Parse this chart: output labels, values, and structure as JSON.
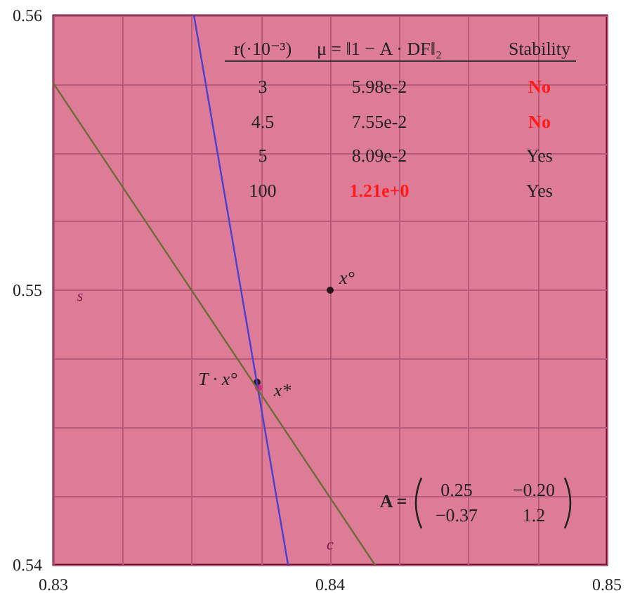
{
  "chart_data": {
    "type": "line",
    "xlim": [
      0.83,
      0.85
    ],
    "ylim": [
      0.54,
      0.56
    ],
    "xticks": [
      0.83,
      {
        "value": 0.8325,
        "label": null
      },
      {
        "value": 0.835,
        "label": null
      },
      {
        "value": 0.8375,
        "label": null
      },
      0.84,
      {
        "value": 0.8425,
        "label": null
      },
      {
        "value": 0.845,
        "label": null
      },
      {
        "value": 0.8475,
        "label": null
      },
      0.85
    ],
    "yticks": [
      0.54,
      {
        "value": 0.5425,
        "label": null
      },
      {
        "value": 0.545,
        "label": null
      },
      {
        "value": 0.5475,
        "label": null
      },
      0.55,
      {
        "value": 0.5525,
        "label": null
      },
      {
        "value": 0.555,
        "label": null
      },
      {
        "value": 0.5575,
        "label": null
      },
      0.56
    ],
    "grid": true,
    "marker": "none",
    "line_style": "solid",
    "series": [
      {
        "color": "#4a3fd0",
        "x": [
          0.83508,
          0.83848
        ],
        "values": [
          0.56,
          0.54
        ]
      },
      {
        "color": "#6e6a3a",
        "x": [
          0.83,
          0.84162
        ],
        "values": [
          0.55753,
          0.54
        ]
      },
      {
        "type": "scatter",
        "marker": "circle",
        "x": [
          0.84,
          0.83736,
          0.83741
        ],
        "values": [
          0.55,
          0.54665,
          0.54645
        ],
        "colors": [
          "#000000",
          "#000000",
          "#e0157a"
        ]
      }
    ],
    "annotations": [
      "r(·10⁻³)",
      "μ = ‖1 − A · DF‖₂",
      "Stability",
      "3",
      "5.98e-2",
      "No",
      "4.5",
      "7.55e-2",
      "No",
      "5",
      "8.09e-2",
      "Yes",
      "100",
      "1.21e+0",
      "Yes",
      "A =",
      "0.25",
      "−0.20",
      "−0.37",
      "1.2",
      "s",
      "c",
      {
        "text": "x°",
        "x": 0.84,
        "y": 0.55
      },
      {
        "text": "T · x°",
        "x": 0.83736,
        "y": 0.54665
      },
      {
        "text": "x*",
        "x": 0.83741,
        "y": 0.54645
      }
    ]
  }
}
